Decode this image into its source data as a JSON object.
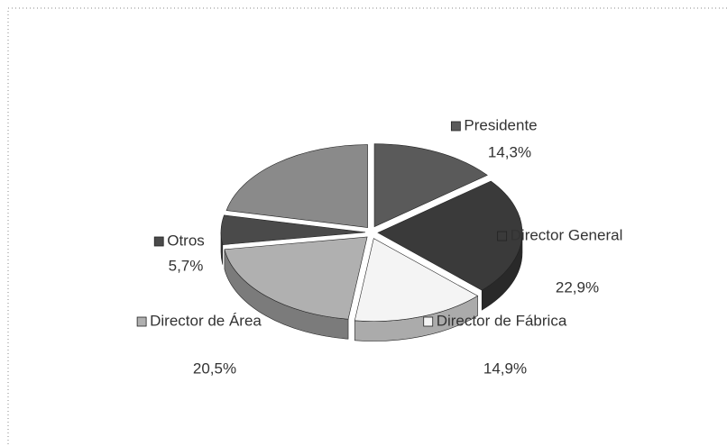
{
  "chart_data": {
    "type": "pie3d",
    "categories": [
      "Presidente",
      "Director General",
      "Director de Fábrica",
      "Director de Área",
      "Otros",
      null
    ],
    "values": [
      14.3,
      22.9,
      14.9,
      20.5,
      5.7,
      21.7
    ],
    "value_labels": [
      "14,3%",
      "22,9%",
      "14,9%",
      "20,5%",
      "5,7%",
      null
    ],
    "colors": [
      "#5a5a5a",
      "#3a3a3a",
      "#f4f4f4",
      "#b0b0b0",
      "#4a4a4a",
      "#8a8a8a"
    ]
  }
}
